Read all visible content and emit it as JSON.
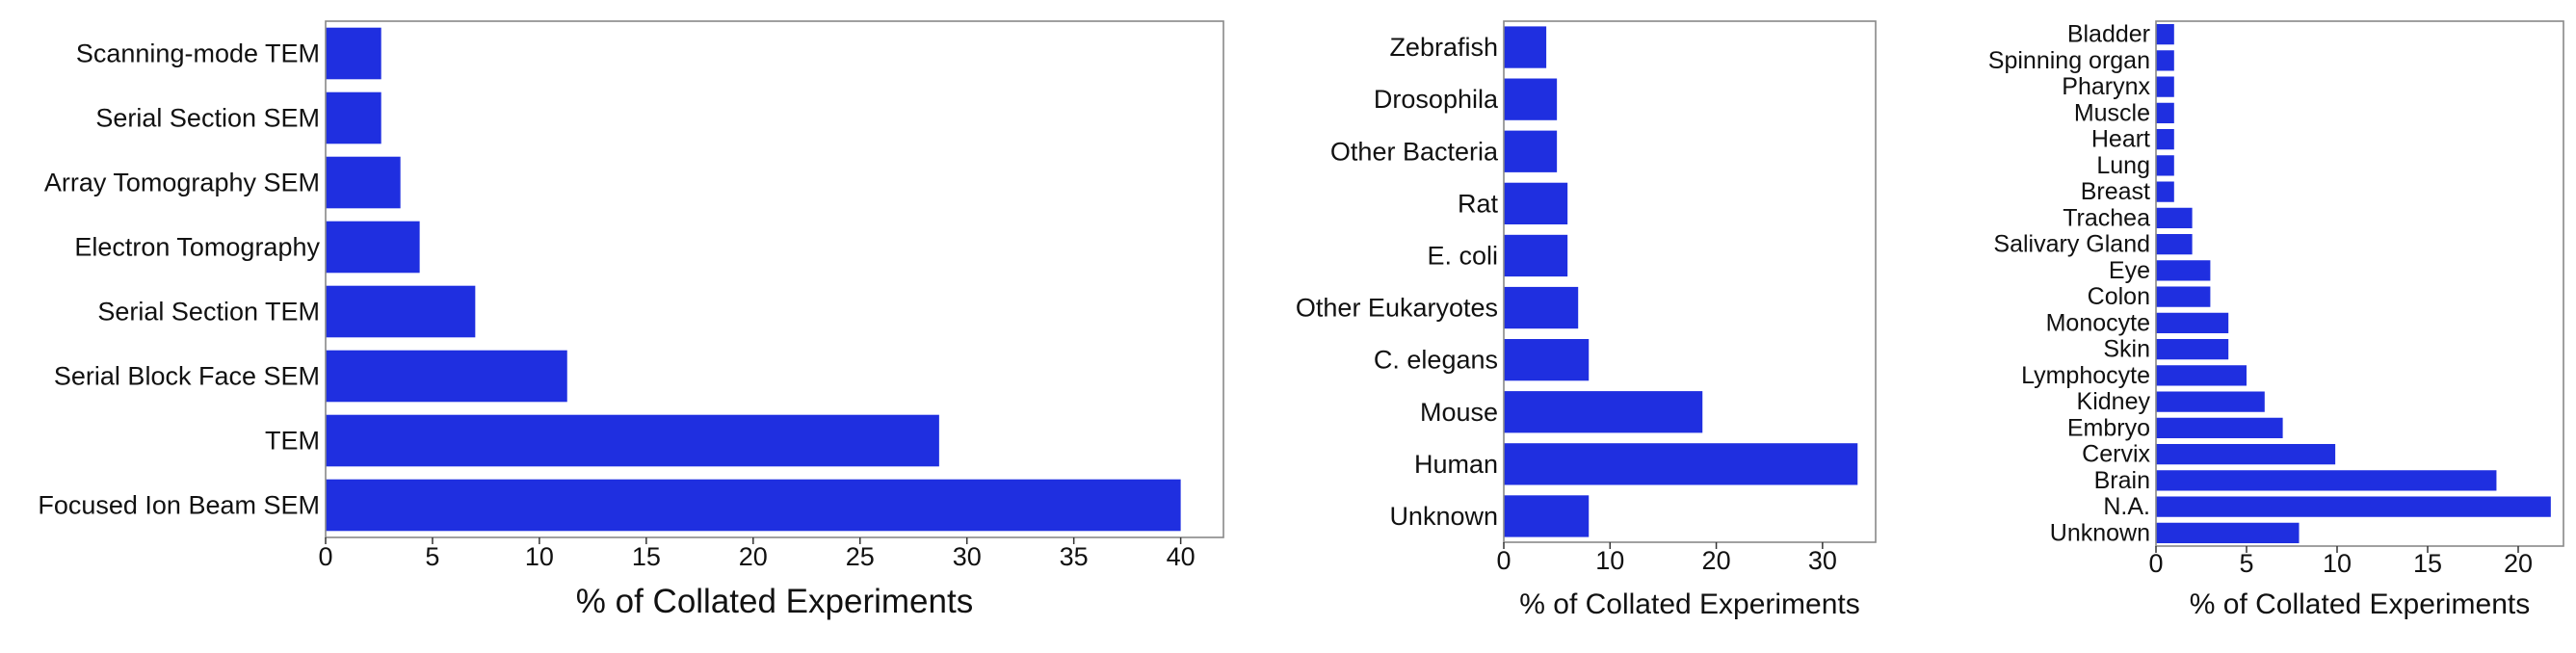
{
  "chart_data": [
    {
      "type": "bar",
      "orientation": "horizontal",
      "title": "",
      "xlabel": "% of Collated Experiments",
      "ylabel": "",
      "xlim": [
        0,
        42
      ],
      "xticks": [
        "0",
        "5",
        "10",
        "15",
        "20",
        "25",
        "30",
        "35",
        "40"
      ],
      "grid": false,
      "color": "#1f2fe0",
      "categories": [
        "Scanning-mode TEM",
        "Serial Section SEM",
        "Array Tomography SEM",
        "Electron Tomography",
        "Serial Section TEM",
        "Serial Block Face SEM",
        "TEM",
        "Focused Ion Beam SEM"
      ],
      "values": [
        2.6,
        2.6,
        3.5,
        4.4,
        7.0,
        11.3,
        28.7,
        40.0
      ]
    },
    {
      "type": "bar",
      "orientation": "horizontal",
      "title": "",
      "xlabel": "% of Collated Experiments",
      "ylabel": "",
      "xlim": [
        0,
        35
      ],
      "xticks": [
        "0",
        "10",
        "20",
        "30"
      ],
      "grid": false,
      "color": "#1f2fe0",
      "categories": [
        "Zebrafish",
        "Drosophila",
        "Other Bacteria",
        "Rat",
        "E. coli",
        "Other Eukaryotes",
        "C. elegans",
        "Mouse",
        "Human",
        "Unknown"
      ],
      "values": [
        4.0,
        5.0,
        5.0,
        6.0,
        6.0,
        7.0,
        8.0,
        18.7,
        33.3,
        8.0
      ]
    },
    {
      "type": "bar",
      "orientation": "horizontal",
      "title": "",
      "xlabel": "% of Collated Experiments",
      "ylabel": "",
      "xlim": [
        0,
        22.5
      ],
      "xticks": [
        "0",
        "5",
        "10",
        "15",
        "20"
      ],
      "grid": false,
      "color": "#1f2fe0",
      "categories": [
        "Bladder",
        "Spinning organ",
        "Pharynx",
        "Muscle",
        "Heart",
        "Lung",
        "Breast",
        "Trachea",
        "Salivary Gland",
        "Eye",
        "Colon",
        "Monocyte",
        "Skin",
        "Lymphocyte",
        "Kidney",
        "Embryo",
        "Cervix",
        "Brain",
        "N.A.",
        "Unknown"
      ],
      "values": [
        1.0,
        1.0,
        1.0,
        1.0,
        1.0,
        1.0,
        1.0,
        2.0,
        2.0,
        3.0,
        3.0,
        4.0,
        4.0,
        5.0,
        6.0,
        7.0,
        9.9,
        18.8,
        21.8,
        7.9
      ]
    }
  ]
}
